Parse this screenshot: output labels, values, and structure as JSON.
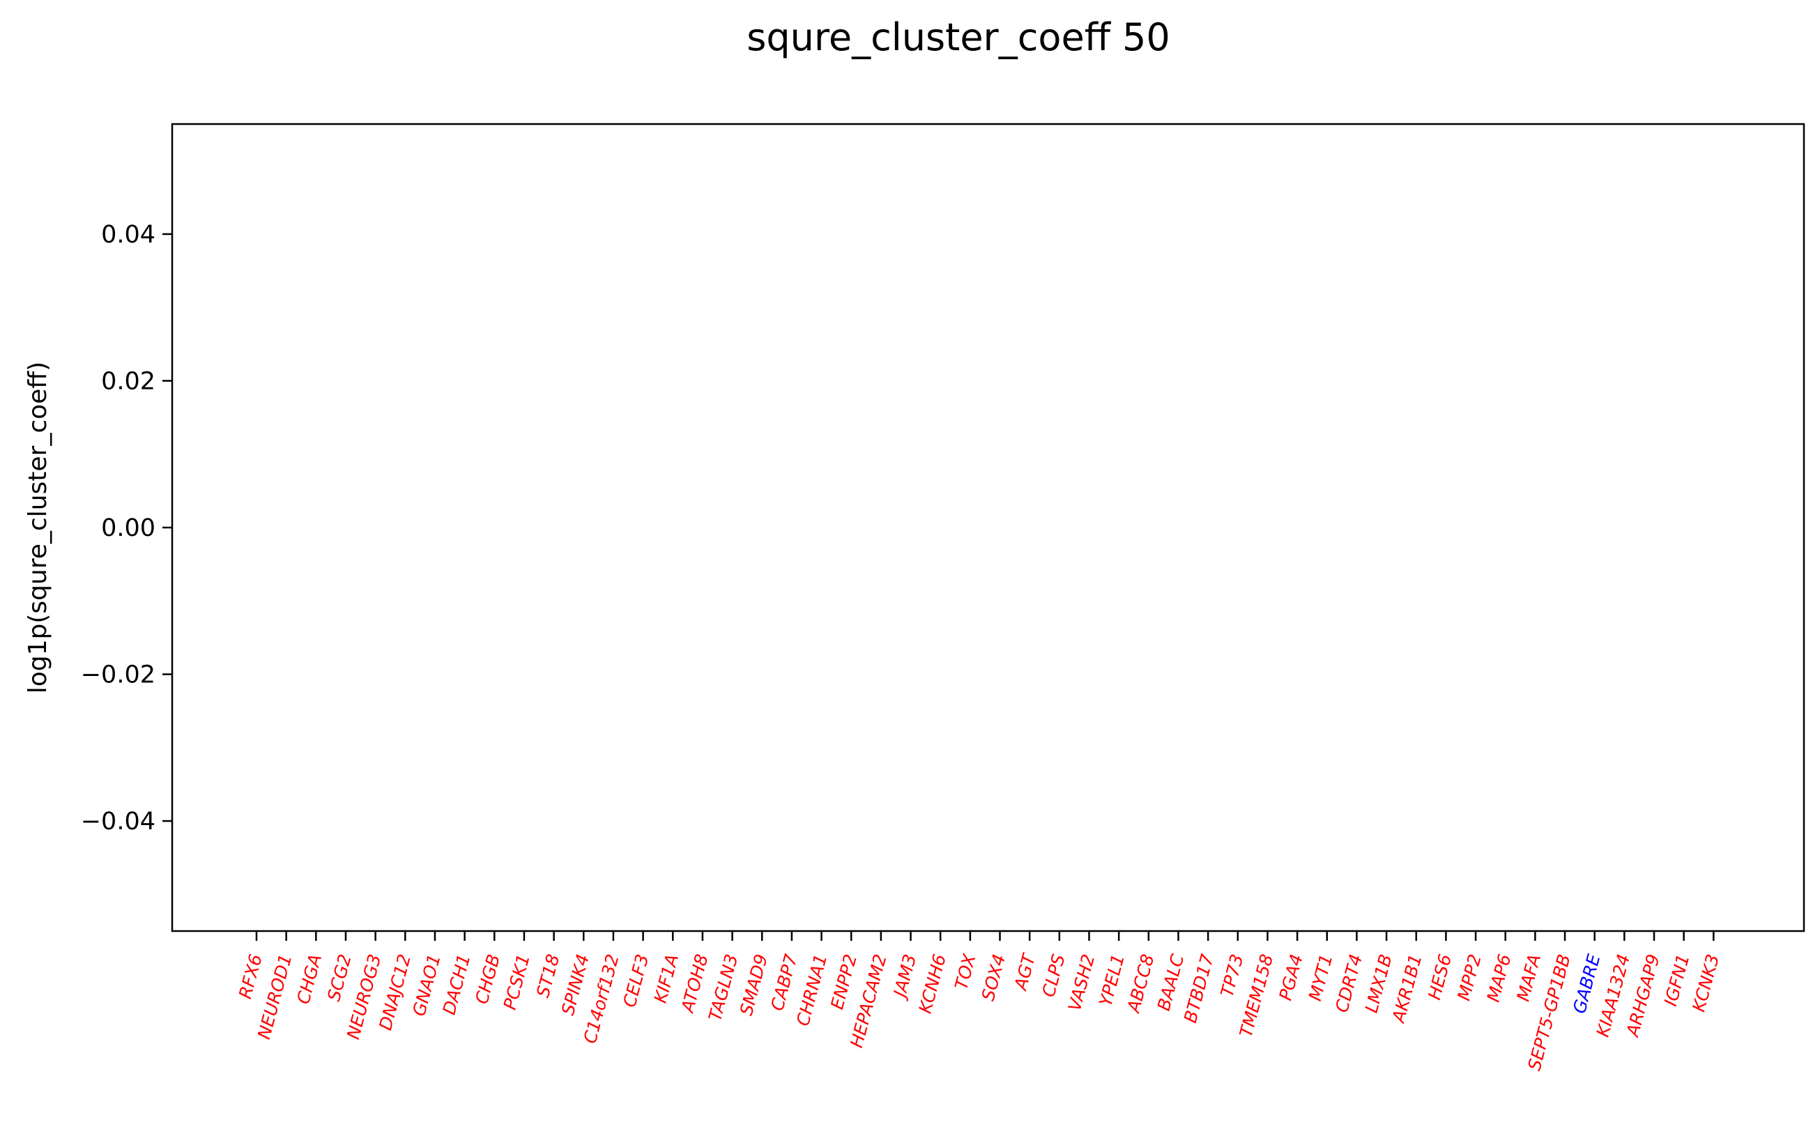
{
  "chart_data": {
    "type": "bar",
    "title": "squre_cluster_coeff 50",
    "xlabel": "",
    "ylabel": "log1p(squre_cluster_coeff)",
    "ylim": [
      -0.055,
      0.055
    ],
    "yticks": [
      0.04,
      0.02,
      0.0,
      -0.02,
      -0.04
    ],
    "ytick_labels": [
      "0.04",
      "0.02",
      "0.00",
      "−0.02",
      "−0.04"
    ],
    "grid": false,
    "categories": [
      "RFX6",
      "NEUROD1",
      "CHGA",
      "SCG2",
      "NEUROG3",
      "DNAJC12",
      "GNAO1",
      "DACH1",
      "CHGB",
      "PCSK1",
      "ST18",
      "SPINK4",
      "C14orf132",
      "CELF3",
      "KIF1A",
      "ATOH8",
      "TAGLN3",
      "SMAD9",
      "CABP7",
      "CHRNA1",
      "ENPP2",
      "HEPACAM2",
      "JAM3",
      "KCNH6",
      "TOX",
      "SOX4",
      "AGT",
      "CLPS",
      "VASH2",
      "YPEL1",
      "ABCC8",
      "BAALC",
      "BTBD17",
      "TP73",
      "TMEM158",
      "PGA4",
      "MYT1",
      "CDRT4",
      "LMX1B",
      "AKR1B1",
      "HES6",
      "MPP2",
      "MAP6",
      "MAFA",
      "SEPT5-GP1BB",
      "GABRE",
      "KIAA1324",
      "ARHGAP9",
      "IGFN1",
      "KCNK3"
    ],
    "values": [
      0,
      0,
      0,
      0,
      0,
      0,
      0,
      0,
      0,
      0,
      0,
      0,
      0,
      0,
      0,
      0,
      0,
      0,
      0,
      0,
      0,
      0,
      0,
      0,
      0,
      0,
      0,
      0,
      0,
      0,
      0,
      0,
      0,
      0,
      0,
      0,
      0,
      0,
      0,
      0,
      0,
      0,
      0,
      0,
      0,
      0,
      0,
      0,
      0,
      0
    ],
    "label_colors": [
      "#ff0000",
      "#ff0000",
      "#ff0000",
      "#ff0000",
      "#ff0000",
      "#ff0000",
      "#ff0000",
      "#ff0000",
      "#ff0000",
      "#ff0000",
      "#ff0000",
      "#ff0000",
      "#ff0000",
      "#ff0000",
      "#ff0000",
      "#ff0000",
      "#ff0000",
      "#ff0000",
      "#ff0000",
      "#ff0000",
      "#ff0000",
      "#ff0000",
      "#ff0000",
      "#ff0000",
      "#ff0000",
      "#ff0000",
      "#ff0000",
      "#ff0000",
      "#ff0000",
      "#ff0000",
      "#ff0000",
      "#ff0000",
      "#ff0000",
      "#ff0000",
      "#ff0000",
      "#ff0000",
      "#ff0000",
      "#ff0000",
      "#ff0000",
      "#ff0000",
      "#ff0000",
      "#ff0000",
      "#ff0000",
      "#ff0000",
      "#ff0000",
      "#0000ff",
      "#ff0000",
      "#ff0000",
      "#ff0000",
      "#ff0000"
    ],
    "tick_label_style": "italic, rotated 75 degrees"
  }
}
